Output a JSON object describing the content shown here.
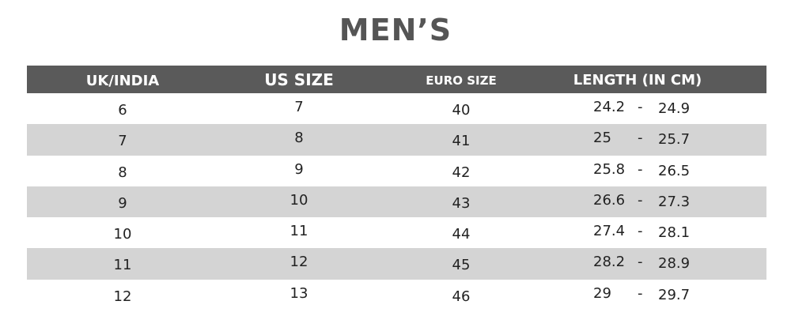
{
  "title": "MEN’S",
  "headers": [
    "UK/INDIA",
    "US SIZE",
    "EURO SIZE",
    "LENGTH (IN CM)"
  ],
  "rows": [
    {
      "uk": "6",
      "us": "7",
      "euro": "40",
      "len_min": "24.2",
      "len_max": "24.9"
    },
    {
      "uk": "7",
      "us": "8",
      "euro": "41",
      "len_min": "25",
      "len_max": "25.7"
    },
    {
      "uk": "8",
      "us": "9",
      "euro": "42",
      "len_min": "25.8",
      "len_max": "26.5"
    },
    {
      "uk": "9",
      "us": "10",
      "euro": "43",
      "len_min": "26.6",
      "len_max": "27.3"
    },
    {
      "uk": "10",
      "us": "11",
      "euro": "44",
      "len_min": "27.4",
      "len_max": "28.1"
    },
    {
      "uk": "11",
      "us": "12",
      "euro": "45",
      "len_min": "28.2",
      "len_max": "28.9"
    },
    {
      "uk": "12",
      "us": "13",
      "euro": "46",
      "len_min": "29",
      "len_max": "29.7"
    }
  ],
  "separator": "-",
  "colors": {
    "header_bg": "#5a5a5a",
    "stripe": "#d4d4d4",
    "title": "#555555"
  }
}
